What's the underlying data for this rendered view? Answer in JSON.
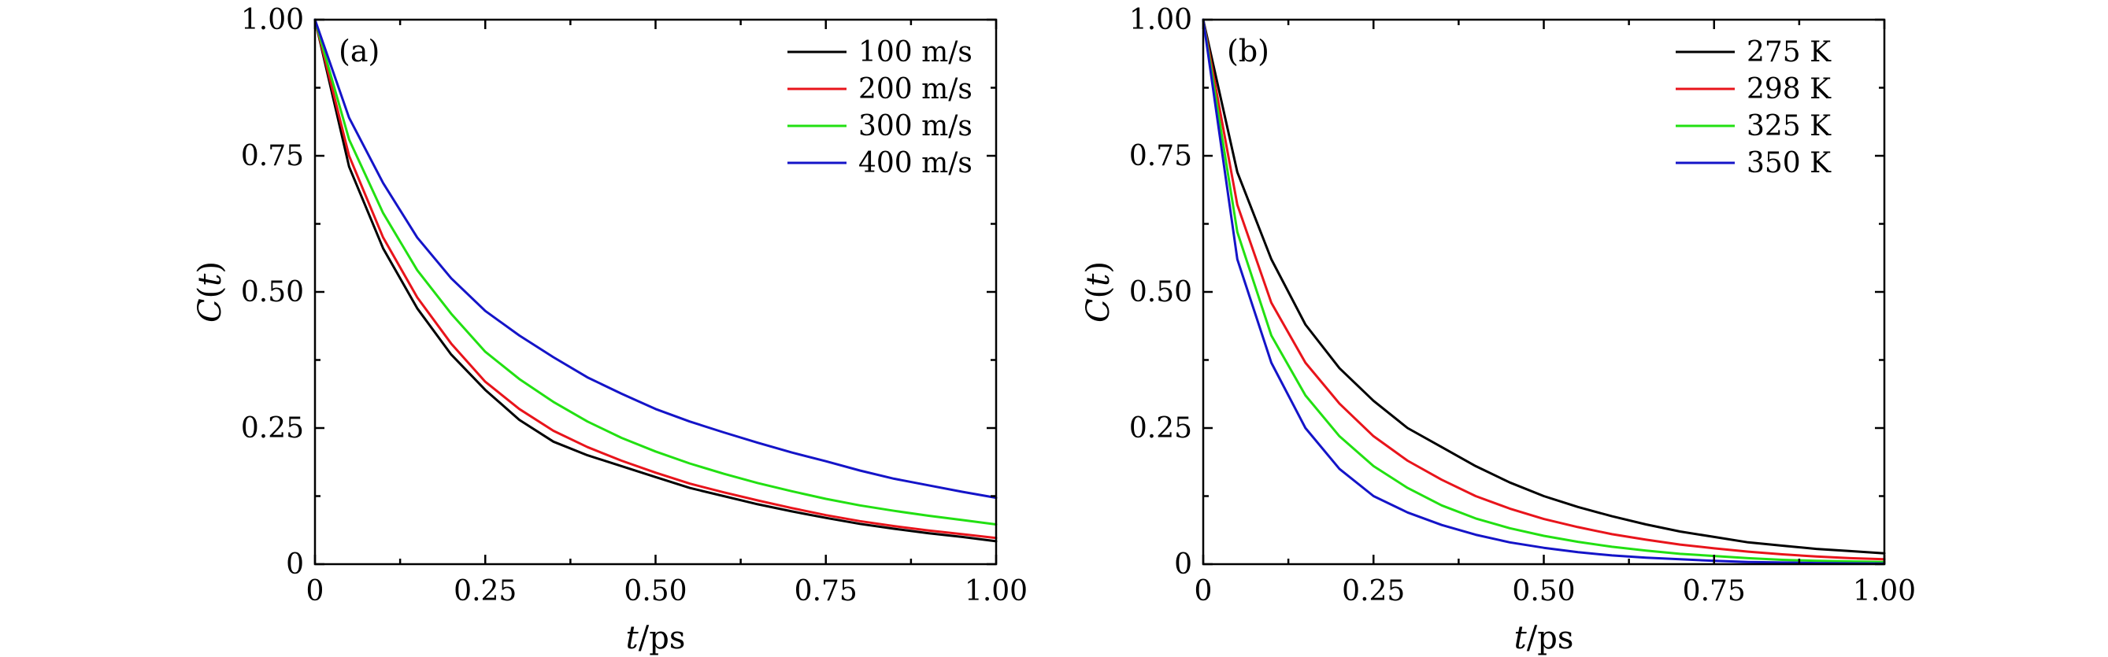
{
  "colors": {
    "black": "#000000",
    "red": "#e8141b",
    "green": "#22e012",
    "blue": "#1414c8"
  },
  "chart_data": [
    {
      "type": "line",
      "panel_tag": "(a)",
      "xlabel_italic": "t",
      "xlabel_rest": "/ps",
      "ylabel_italic": "C",
      "ylabel_paren_open": "(",
      "ylabel_arg": "t",
      "ylabel_paren_close": ")",
      "xlim": [
        0,
        1
      ],
      "ylim": [
        0,
        1
      ],
      "xticks": [
        0,
        0.25,
        0.5,
        0.75,
        1
      ],
      "xtick_labels": [
        "0",
        "0.25",
        "0.50",
        "0.75",
        "1.00"
      ],
      "yticks": [
        0,
        0.25,
        0.5,
        0.75,
        1
      ],
      "ytick_labels": [
        "0",
        "0.25",
        "0.50",
        "0.75",
        "1.00"
      ],
      "legend_position": "top-right",
      "x": [
        0,
        0.05,
        0.1,
        0.15,
        0.2,
        0.25,
        0.3,
        0.35,
        0.4,
        0.45,
        0.5,
        0.55,
        0.6,
        0.65,
        0.7,
        0.75,
        0.8,
        0.85,
        0.9,
        0.95,
        1.0
      ],
      "series": [
        {
          "name": "100 m/s",
          "color": "black",
          "values": [
            1.0,
            0.73,
            0.58,
            0.47,
            0.385,
            0.32,
            0.265,
            0.225,
            0.2,
            0.18,
            0.16,
            0.14,
            0.125,
            0.11,
            0.097,
            0.085,
            0.074,
            0.065,
            0.057,
            0.05,
            0.042
          ]
        },
        {
          "name": "200 m/s",
          "color": "red",
          "values": [
            1.0,
            0.75,
            0.6,
            0.49,
            0.405,
            0.335,
            0.285,
            0.245,
            0.215,
            0.19,
            0.168,
            0.148,
            0.132,
            0.117,
            0.103,
            0.09,
            0.079,
            0.07,
            0.062,
            0.055,
            0.048
          ]
        },
        {
          "name": "300 m/s",
          "color": "green",
          "values": [
            1.0,
            0.78,
            0.645,
            0.54,
            0.46,
            0.39,
            0.34,
            0.298,
            0.262,
            0.232,
            0.207,
            0.185,
            0.166,
            0.149,
            0.134,
            0.12,
            0.108,
            0.098,
            0.089,
            0.081,
            0.073
          ]
        },
        {
          "name": "400 m/s",
          "color": "blue",
          "values": [
            1.0,
            0.82,
            0.7,
            0.6,
            0.525,
            0.465,
            0.42,
            0.38,
            0.343,
            0.313,
            0.285,
            0.262,
            0.242,
            0.223,
            0.205,
            0.189,
            0.172,
            0.157,
            0.145,
            0.133,
            0.122
          ]
        }
      ]
    },
    {
      "type": "line",
      "panel_tag": "(b)",
      "xlabel_italic": "t",
      "xlabel_rest": "/ps",
      "ylabel_italic": "C",
      "ylabel_paren_open": "(",
      "ylabel_arg": "t",
      "ylabel_paren_close": ")",
      "xlim": [
        0,
        1
      ],
      "ylim": [
        0,
        1
      ],
      "xticks": [
        0,
        0.25,
        0.5,
        0.75,
        1
      ],
      "xtick_labels": [
        "0",
        "0.25",
        "0.50",
        "0.75",
        "1.00"
      ],
      "yticks": [
        0,
        0.25,
        0.5,
        0.75,
        1
      ],
      "ytick_labels": [
        "0",
        "0.25",
        "0.50",
        "0.75",
        "1.00"
      ],
      "legend_position": "top-right",
      "x": [
        0,
        0.05,
        0.1,
        0.15,
        0.2,
        0.25,
        0.3,
        0.35,
        0.4,
        0.45,
        0.5,
        0.55,
        0.6,
        0.65,
        0.7,
        0.75,
        0.8,
        0.85,
        0.9,
        0.95,
        1.0
      ],
      "series": [
        {
          "name": "275 K",
          "color": "black",
          "values": [
            1.0,
            0.72,
            0.56,
            0.44,
            0.36,
            0.3,
            0.25,
            0.215,
            0.18,
            0.15,
            0.125,
            0.105,
            0.088,
            0.073,
            0.06,
            0.05,
            0.04,
            0.034,
            0.028,
            0.024,
            0.02
          ]
        },
        {
          "name": "298 K",
          "color": "red",
          "values": [
            1.0,
            0.66,
            0.48,
            0.37,
            0.295,
            0.235,
            0.19,
            0.155,
            0.125,
            0.102,
            0.083,
            0.068,
            0.055,
            0.045,
            0.036,
            0.029,
            0.023,
            0.018,
            0.014,
            0.011,
            0.009
          ]
        },
        {
          "name": "325 K",
          "color": "green",
          "values": [
            1.0,
            0.61,
            0.42,
            0.31,
            0.235,
            0.18,
            0.14,
            0.108,
            0.084,
            0.066,
            0.052,
            0.041,
            0.032,
            0.025,
            0.019,
            0.015,
            0.011,
            0.008,
            0.006,
            0.005,
            0.004
          ]
        },
        {
          "name": "350 K",
          "color": "blue",
          "values": [
            1.0,
            0.56,
            0.37,
            0.25,
            0.175,
            0.125,
            0.095,
            0.072,
            0.054,
            0.04,
            0.03,
            0.022,
            0.016,
            0.012,
            0.009,
            0.006,
            0.004,
            0.003,
            0.002,
            0.0015,
            0.001
          ]
        }
      ]
    }
  ]
}
